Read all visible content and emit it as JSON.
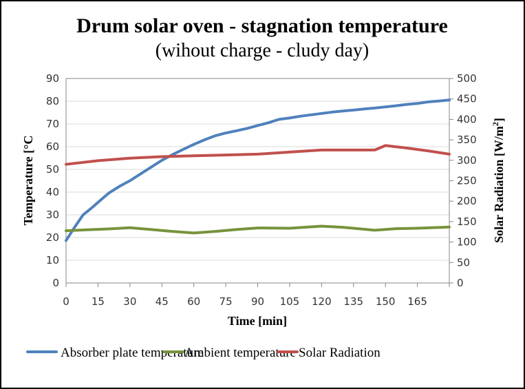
{
  "chart_data": {
    "type": "line",
    "title": "Drum solar oven - stagnation temperature",
    "subtitle": "(wihout charge - cludy day)",
    "xlabel": "Time [min]",
    "ylabel": "Temperature [°C",
    "y2label_main": "Solar Radiation [W/m",
    "y2label_sup": "2",
    "y2label_close": "]",
    "xlim": [
      0,
      180
    ],
    "ylim": [
      0,
      90
    ],
    "y2lim": [
      0,
      500
    ],
    "x_ticks": [
      0,
      15,
      30,
      45,
      60,
      75,
      90,
      105,
      120,
      135,
      150,
      165,
      180
    ],
    "x_tick_labels": [
      "0",
      "15",
      "30",
      "45",
      "60",
      "75",
      "90",
      "105",
      "120",
      "135",
      "150",
      "165",
      ""
    ],
    "y_ticks": [
      0,
      10,
      20,
      30,
      40,
      50,
      60,
      70,
      80,
      90
    ],
    "y_tick_labels": [
      "0",
      "10",
      "20",
      "30",
      "40",
      "50",
      "60",
      "70",
      "80",
      "90"
    ],
    "y2_ticks": [
      0,
      50,
      100,
      150,
      200,
      250,
      300,
      350,
      400,
      450,
      500
    ],
    "y2_tick_labels": [
      "0",
      "50",
      "100",
      "150",
      "200",
      "250",
      "300",
      "350",
      "400",
      "450",
      "500"
    ],
    "grid": true,
    "legend_position": "bottom",
    "series": [
      {
        "name": "Absorber plate temperature",
        "axis": "left",
        "color": "#4F81BD",
        "x": [
          0,
          4,
          8,
          12,
          16,
          20,
          25,
          30,
          35,
          40,
          45,
          50,
          55,
          60,
          65,
          70,
          75,
          80,
          85,
          90,
          95,
          100,
          105,
          110,
          115,
          120,
          125,
          130,
          135,
          140,
          145,
          150,
          155,
          160,
          165,
          170,
          175,
          180
        ],
        "values": [
          18.7,
          24.5,
          30.0,
          33.0,
          36.3,
          39.5,
          42.5,
          45.0,
          48.0,
          51.0,
          54.0,
          56.5,
          58.8,
          61.0,
          63.0,
          64.8,
          66.0,
          67.0,
          68.0,
          69.3,
          70.5,
          72.0,
          72.6,
          73.4,
          74.0,
          74.6,
          75.2,
          75.7,
          76.1,
          76.6,
          77.0,
          77.5,
          78.0,
          78.6,
          79.0,
          79.7,
          80.1,
          80.5
        ]
      },
      {
        "name": "Ambient temperature",
        "axis": "left",
        "color": "#77933C",
        "x": [
          0,
          10,
          20,
          30,
          40,
          50,
          60,
          70,
          80,
          90,
          105,
          120,
          130,
          145,
          155,
          165,
          180
        ],
        "values": [
          23.0,
          23.4,
          23.8,
          24.3,
          23.5,
          22.7,
          22.0,
          22.7,
          23.5,
          24.2,
          24.1,
          25.0,
          24.5,
          23.2,
          23.9,
          24.1,
          24.6
        ]
      },
      {
        "name": "Solar Radiation",
        "axis": "right",
        "color": "#C0504D",
        "x": [
          0,
          15,
          30,
          45,
          60,
          75,
          90,
          105,
          120,
          145,
          150,
          160,
          170,
          180
        ],
        "values": [
          290,
          299,
          305,
          309,
          311,
          313,
          315,
          320,
          325,
          325,
          336,
          330,
          323,
          315
        ]
      }
    ]
  }
}
